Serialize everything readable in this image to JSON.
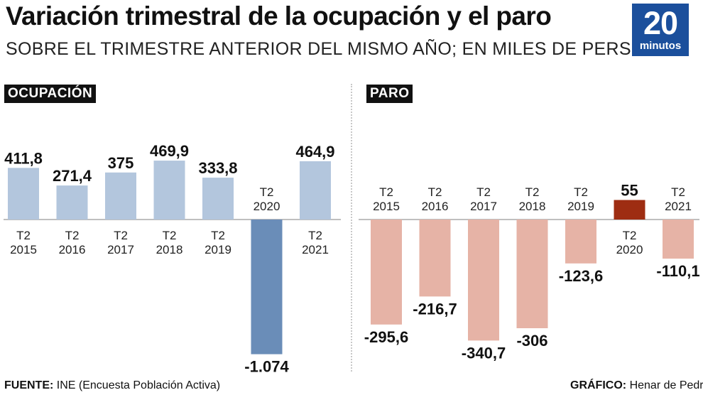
{
  "header": {
    "title": "Variación trimestral de la ocupación y el paro",
    "subtitle": "SOBRE EL TRIMESTRE ANTERIOR DEL MISMO AÑO; EN MILES DE PERSONAS",
    "logo_number": "20",
    "logo_word": "minutos"
  },
  "footer": {
    "source_label": "FUENTE:",
    "source_text": "INE (Encuesta Población Activa)",
    "credit_label": "GRÁFICO:",
    "credit_text": "Henar de Pedro"
  },
  "chart_data": [
    {
      "type": "bar",
      "title": "OCUPACIÓN",
      "categories": [
        [
          "T2",
          "2015"
        ],
        [
          "T2",
          "2016"
        ],
        [
          "T2",
          "2017"
        ],
        [
          "T2",
          "2018"
        ],
        [
          "T2",
          "2019"
        ],
        [
          "T2",
          "2020"
        ],
        [
          "T2",
          "2021"
        ]
      ],
      "values": [
        411.8,
        271.4,
        375,
        469.9,
        333.8,
        -1074,
        464.9
      ],
      "value_labels": [
        "411,8",
        "271,4",
        "375",
        "469,9",
        "333,8",
        "-1.074",
        "464,9"
      ],
      "colors": [
        "#b3c6dd",
        "#b3c6dd",
        "#b3c6dd",
        "#b3c6dd",
        "#b3c6dd",
        "#6a8db8",
        "#b3c6dd"
      ],
      "ylim": [
        -1074,
        469.9
      ],
      "grid": false
    },
    {
      "type": "bar",
      "title": "PARO",
      "categories": [
        [
          "T2",
          "2015"
        ],
        [
          "T2",
          "2016"
        ],
        [
          "T2",
          "2017"
        ],
        [
          "T2",
          "2018"
        ],
        [
          "T2",
          "2019"
        ],
        [
          "T2",
          "2020"
        ],
        [
          "T2",
          "2021"
        ]
      ],
      "values": [
        -295.6,
        -216.7,
        -340.7,
        -306,
        -123.6,
        55,
        -110.1
      ],
      "value_labels": [
        "-295,6",
        "-216,7",
        "-340,7",
        "-306",
        "-123,6",
        "55",
        "-110,1"
      ],
      "colors": [
        "#e6b3a6",
        "#e6b3a6",
        "#e6b3a6",
        "#e6b3a6",
        "#e6b3a6",
        "#9e2d12",
        "#e6b3a6"
      ],
      "ylim": [
        -340.7,
        55
      ],
      "grid": false
    }
  ]
}
